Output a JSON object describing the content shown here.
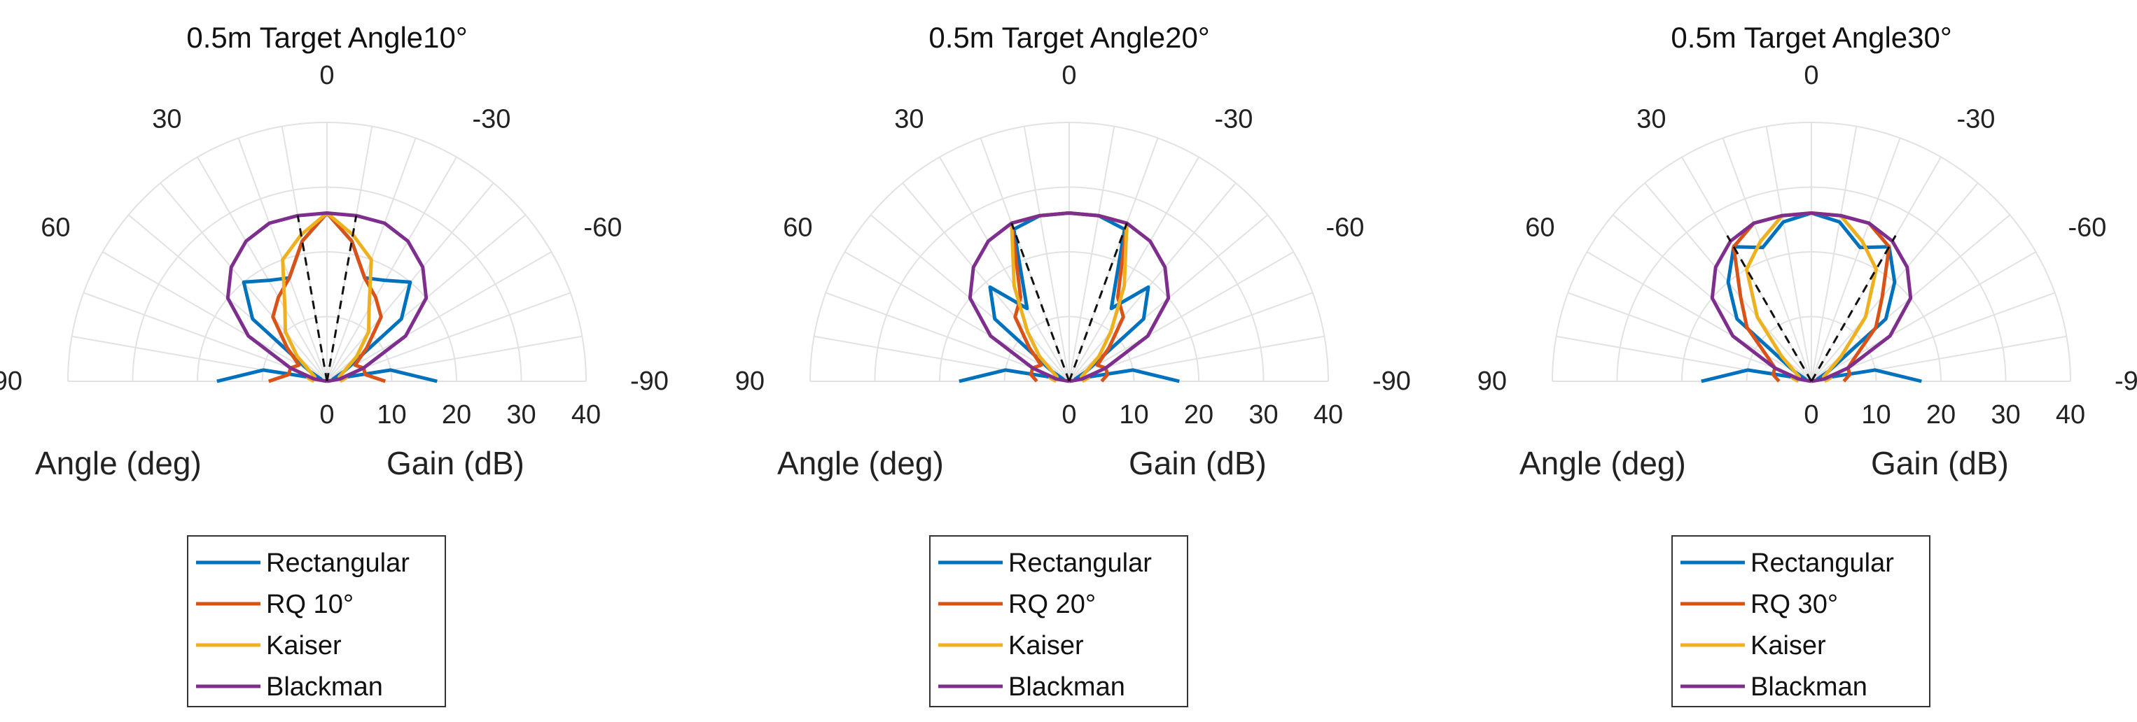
{
  "chart_data": [
    {
      "type": "polar",
      "title": "0.5m Target Angle10°",
      "theta_label": "Angle (deg)",
      "r_label": "Gain (dB)",
      "theta_ticks": [
        "0",
        "30",
        "-30",
        "60",
        "-60",
        "90",
        "-90"
      ],
      "r_ticks": [
        "0",
        "10",
        "20",
        "30",
        "40"
      ],
      "r_range": [
        0,
        40
      ],
      "theta_range": [
        -90,
        90
      ],
      "target_lines_deg": [
        10,
        -10
      ],
      "angles_deg": [
        -90,
        -80,
        -70,
        -60,
        -50,
        -40,
        -30,
        -20,
        -10,
        0,
        10,
        20,
        30,
        40,
        50,
        60,
        70,
        80,
        90
      ],
      "series": [
        {
          "name": "Rectangular",
          "color": "#0072BD",
          "values": [
            17,
            10,
            1,
            3,
            15,
            20,
            18,
            17,
            22,
            26,
            22,
            17,
            18,
            20,
            15,
            3,
            1,
            10,
            17
          ]
        },
        {
          "name": "RQ 10°",
          "color": "#D95319",
          "values": [
            9,
            6,
            6,
            5,
            8,
            13,
            15,
            17,
            22,
            26,
            22,
            17,
            15,
            13,
            8,
            5,
            6,
            6,
            9
          ]
        },
        {
          "name": "Kaiser",
          "color": "#EDB120",
          "values": [
            2,
            3,
            2,
            3,
            6,
            10,
            13,
            20,
            23,
            26,
            23,
            20,
            13,
            10,
            6,
            3,
            2,
            3,
            2
          ]
        },
        {
          "name": "Blackman",
          "color": "#7E2F8E",
          "values": [
            0,
            2,
            6,
            14,
            20,
            23,
            25,
            26,
            26,
            26,
            26,
            26,
            25,
            23,
            20,
            14,
            6,
            2,
            0
          ]
        }
      ]
    },
    {
      "type": "polar",
      "title": "0.5m Target Angle20°",
      "theta_label": "Angle (deg)",
      "r_label": "Gain (dB)",
      "theta_ticks": [
        "0",
        "30",
        "-30",
        "60",
        "-60",
        "90",
        "-90"
      ],
      "r_ticks": [
        "0",
        "10",
        "20",
        "30",
        "40"
      ],
      "r_range": [
        0,
        40
      ],
      "theta_range": [
        -90,
        90
      ],
      "target_lines_deg": [
        20,
        -20
      ],
      "angles_deg": [
        -90,
        -80,
        -70,
        -60,
        -50,
        -40,
        -30,
        -20,
        -10,
        0,
        10,
        20,
        30,
        40,
        50,
        60,
        70,
        80,
        90
      ],
      "series": [
        {
          "name": "Rectangular",
          "color": "#0072BD",
          "values": [
            17,
            10,
            1,
            3,
            15,
            19,
            13,
            25,
            26,
            26,
            26,
            25,
            13,
            19,
            15,
            3,
            1,
            10,
            17
          ]
        },
        {
          "name": "RQ 20°",
          "color": "#D95319",
          "values": [
            5,
            6,
            6,
            5,
            8,
            13,
            15,
            26,
            26,
            26,
            26,
            26,
            15,
            13,
            8,
            5,
            6,
            6,
            5
          ]
        },
        {
          "name": "Kaiser",
          "color": "#EDB120",
          "values": [
            2,
            3,
            2,
            3,
            6,
            10,
            17,
            26,
            26,
            26,
            26,
            26,
            17,
            10,
            6,
            3,
            2,
            3,
            2
          ]
        },
        {
          "name": "Blackman",
          "color": "#7E2F8E",
          "values": [
            0,
            2,
            6,
            14,
            20,
            23,
            25,
            26,
            26,
            26,
            26,
            26,
            25,
            23,
            20,
            14,
            6,
            2,
            0
          ]
        }
      ]
    },
    {
      "type": "polar",
      "title": "0.5m Target Angle30°",
      "theta_label": "Angle (deg)",
      "r_label": "Gain (dB)",
      "theta_ticks": [
        "0",
        "30",
        "-30",
        "60",
        "-60",
        "90",
        "-90"
      ],
      "r_ticks": [
        "0",
        "10",
        "20",
        "30",
        "40"
      ],
      "r_range": [
        0,
        40
      ],
      "theta_range": [
        -90,
        90
      ],
      "target_lines_deg": [
        30,
        -30
      ],
      "angles_deg": [
        -90,
        -80,
        -70,
        -60,
        -50,
        -40,
        -30,
        -20,
        -10,
        0,
        10,
        20,
        30,
        40,
        50,
        60,
        70,
        80,
        90
      ],
      "series": [
        {
          "name": "Rectangular",
          "color": "#0072BD",
          "values": [
            17,
            10,
            1,
            3,
            15,
            20,
            24,
            22,
            25,
            26,
            25,
            22,
            24,
            20,
            15,
            3,
            1,
            10,
            17
          ]
        },
        {
          "name": "RQ 30°",
          "color": "#D95319",
          "values": [
            5,
            6,
            6,
            8,
            13,
            17,
            24,
            26,
            26,
            26,
            26,
            26,
            24,
            17,
            13,
            8,
            6,
            6,
            5
          ]
        },
        {
          "name": "Kaiser",
          "color": "#EDB120",
          "values": [
            2,
            3,
            2,
            3,
            6,
            13,
            20,
            23,
            26,
            26,
            26,
            23,
            20,
            13,
            6,
            3,
            2,
            3,
            2
          ]
        },
        {
          "name": "Blackman",
          "color": "#7E2F8E",
          "values": [
            0,
            2,
            6,
            14,
            20,
            23,
            25,
            26,
            26,
            26,
            26,
            26,
            25,
            23,
            20,
            14,
            6,
            2,
            0
          ]
        }
      ]
    }
  ]
}
